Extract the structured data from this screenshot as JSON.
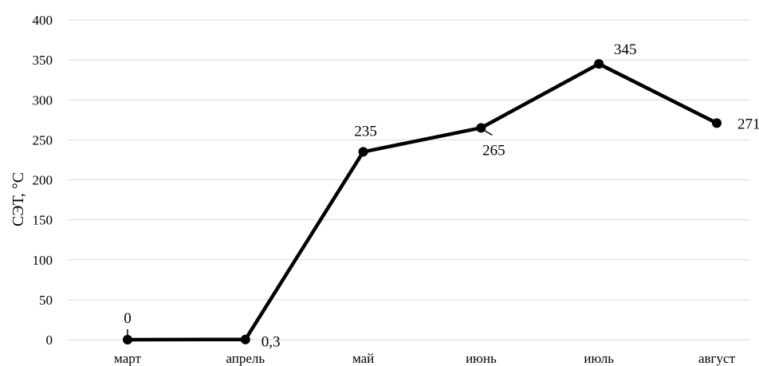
{
  "chart_data": {
    "type": "line",
    "categories": [
      "март",
      "апрель",
      "май",
      "июнь",
      "июль",
      "август"
    ],
    "values": [
      0,
      0.3,
      235,
      265,
      345,
      271
    ],
    "data_labels": [
      "0",
      "0,3",
      "235",
      "265",
      "345",
      "271"
    ],
    "title": "",
    "xlabel": "",
    "ylabel": "СЭТ, °С",
    "ylim": [
      0,
      400
    ],
    "yticks": [
      "0",
      "50",
      "100",
      "150",
      "200",
      "250",
      "300",
      "350",
      "400"
    ],
    "grid": true,
    "legend": "none",
    "line_color": "#000000",
    "marker": "circle"
  }
}
